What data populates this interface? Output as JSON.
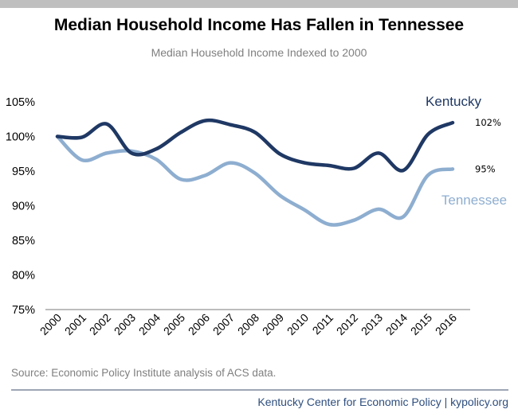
{
  "title": "Median Household Income Has Fallen in Tennessee",
  "subtitle": "Median Household Income Indexed to 2000",
  "source": "Source: Economic Policy Institute analysis of ACS data.",
  "credit": "Kentucky Center for Economic Policy | kypolicy.org",
  "colors": {
    "kentucky": "#1f3864",
    "tennessee": "#8eaed0",
    "axis": "#595959"
  },
  "chart_data": {
    "type": "line",
    "title": "Median Household Income Has Fallen in Tennessee",
    "subtitle": "Median Household Income Indexed to 2000",
    "x": [
      "2000",
      "2001",
      "2002",
      "2003",
      "2004",
      "2005",
      "2006",
      "2007",
      "2008",
      "2009",
      "2010",
      "2011",
      "2012",
      "2013",
      "2014",
      "2015",
      "2016"
    ],
    "ylim": [
      75,
      105
    ],
    "yticks": [
      75,
      80,
      85,
      90,
      95,
      100,
      105
    ],
    "ytick_labels": [
      "75%",
      "80%",
      "85%",
      "90%",
      "95%",
      "100%",
      "105%"
    ],
    "grid": false,
    "series": [
      {
        "name": "Kentucky",
        "values": [
          100,
          99.9,
          101.8,
          97.6,
          98.2,
          100.6,
          102.3,
          101.7,
          100.6,
          97.5,
          96.2,
          95.8,
          95.4,
          97.6,
          95.1,
          100.3,
          102
        ],
        "end_label": "102%"
      },
      {
        "name": "Tennessee",
        "values": [
          100,
          96.6,
          97.6,
          97.9,
          96.7,
          93.8,
          94.4,
          96.2,
          94.7,
          91.5,
          89.4,
          87.3,
          87.9,
          89.5,
          88.4,
          94.4,
          95.3
        ],
        "end_label": "95%"
      }
    ]
  }
}
